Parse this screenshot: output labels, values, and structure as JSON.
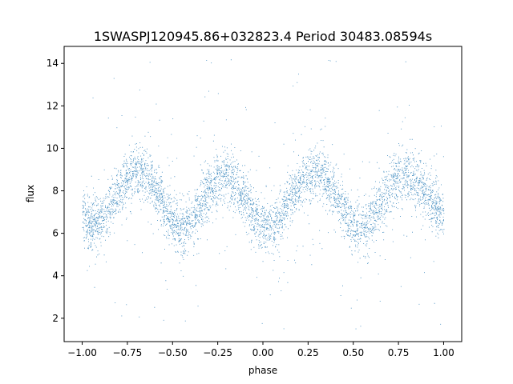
{
  "chart_data": {
    "type": "scatter",
    "title": "1SWASPJ120945.86+032823.4 Period 30483.08594s",
    "xlabel": "phase",
    "ylabel": "flux",
    "xlim": [
      -1.1,
      1.1
    ],
    "ylim": [
      0.9,
      14.8
    ],
    "xticks": [
      -1.0,
      -0.75,
      -0.5,
      -0.25,
      0.0,
      0.25,
      0.5,
      0.75,
      1.0
    ],
    "xtick_labels": [
      "−1.00",
      "−0.75",
      "−0.50",
      "−0.25",
      "0.00",
      "0.25",
      "0.50",
      "0.75",
      "1.00"
    ],
    "yticks": [
      2,
      4,
      6,
      8,
      10,
      12,
      14
    ],
    "ytick_labels": [
      "2",
      "4",
      "6",
      "8",
      "10",
      "12",
      "14"
    ],
    "grid": false,
    "legend": "none",
    "point_color": "#1f77b4",
    "series": [
      {
        "phase_range": [
          -1.0,
          1.0
        ],
        "band_profile": [
          {
            "phase": -1.0,
            "flux": 6.8
          },
          {
            "phase": -0.95,
            "flux": 6.4
          },
          {
            "phase": -0.9,
            "flux": 6.6
          },
          {
            "phase": -0.85,
            "flux": 7.2
          },
          {
            "phase": -0.8,
            "flux": 8.0
          },
          {
            "phase": -0.75,
            "flux": 8.6
          },
          {
            "phase": -0.7,
            "flux": 8.9
          },
          {
            "phase": -0.65,
            "flux": 8.8
          },
          {
            "phase": -0.6,
            "flux": 8.2
          },
          {
            "phase": -0.55,
            "flux": 7.3
          },
          {
            "phase": -0.5,
            "flux": 6.4
          },
          {
            "phase": -0.45,
            "flux": 6.2
          },
          {
            "phase": -0.4,
            "flux": 6.6
          },
          {
            "phase": -0.35,
            "flux": 7.3
          },
          {
            "phase": -0.3,
            "flux": 8.0
          },
          {
            "phase": -0.25,
            "flux": 8.5
          },
          {
            "phase": -0.2,
            "flux": 8.6
          },
          {
            "phase": -0.15,
            "flux": 8.3
          },
          {
            "phase": -0.1,
            "flux": 7.7
          },
          {
            "phase": -0.05,
            "flux": 6.8
          },
          {
            "phase": 0.0,
            "flux": 6.2
          },
          {
            "phase": 0.05,
            "flux": 6.4
          },
          {
            "phase": 0.1,
            "flux": 6.9
          },
          {
            "phase": 0.15,
            "flux": 7.6
          },
          {
            "phase": 0.2,
            "flux": 8.3
          },
          {
            "phase": 0.25,
            "flux": 8.8
          },
          {
            "phase": 0.3,
            "flux": 8.9
          },
          {
            "phase": 0.35,
            "flux": 8.6
          },
          {
            "phase": 0.4,
            "flux": 7.9
          },
          {
            "phase": 0.45,
            "flux": 7.0
          },
          {
            "phase": 0.5,
            "flux": 6.3
          },
          {
            "phase": 0.55,
            "flux": 6.2
          },
          {
            "phase": 0.6,
            "flux": 6.6
          },
          {
            "phase": 0.65,
            "flux": 7.3
          },
          {
            "phase": 0.7,
            "flux": 8.0
          },
          {
            "phase": 0.75,
            "flux": 8.6
          },
          {
            "phase": 0.8,
            "flux": 8.8
          },
          {
            "phase": 0.85,
            "flux": 8.5
          },
          {
            "phase": 0.9,
            "flux": 7.9
          },
          {
            "phase": 0.95,
            "flux": 7.2
          },
          {
            "phase": 1.0,
            "flux": 6.8
          }
        ],
        "band_spread": 1.1,
        "outlier_range": [
          1.5,
          14.3
        ]
      }
    ]
  }
}
